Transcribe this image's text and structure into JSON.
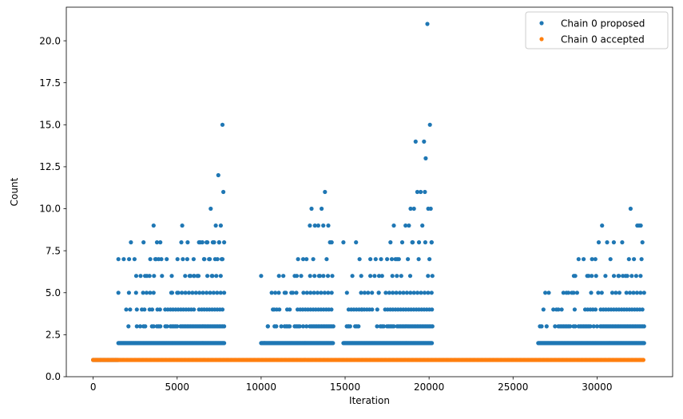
{
  "chart_data": {
    "type": "scatter",
    "xlabel": "Iteration",
    "ylabel": "Count",
    "xlim": [
      -1600,
      34500
    ],
    "ylim": [
      0,
      22
    ],
    "xticks": [
      0,
      5000,
      10000,
      15000,
      20000,
      25000,
      30000
    ],
    "xtick_labels": [
      "0",
      "5000",
      "10000",
      "15000",
      "20000",
      "25000",
      "30000"
    ],
    "yticks": [
      0,
      2.5,
      5,
      7.5,
      10,
      12.5,
      15,
      17.5,
      20
    ],
    "ytick_labels": [
      "0.0",
      "2.5",
      "5.0",
      "7.5",
      "10.0",
      "12.5",
      "15.0",
      "17.5",
      "20.0"
    ],
    "grid": false,
    "legend_position": "top-right",
    "series": [
      {
        "name": "Chain 0 proposed",
        "color": "#1f77b4",
        "note_bands": [
          {
            "x_range": [
              0,
              1500
            ],
            "values": [
              1
            ]
          },
          {
            "x_range": [
              1500,
              7800
            ],
            "values": [
              2,
              3,
              4,
              5,
              6,
              7,
              8
            ]
          },
          {
            "x_range": [
              10000,
              14300
            ],
            "values": [
              2,
              3,
              4,
              5,
              6
            ]
          },
          {
            "x_range": [
              14900,
              20200
            ],
            "values": [
              2,
              3,
              4,
              5,
              6,
              7,
              8
            ]
          },
          {
            "x_range": [
              26500,
              32800
            ],
            "values": [
              2,
              3,
              4,
              5,
              6
            ]
          }
        ],
        "points": [
          [
            3600,
            9
          ],
          [
            3800,
            8
          ],
          [
            4000,
            8
          ],
          [
            3200,
            6
          ],
          [
            3400,
            7
          ],
          [
            3700,
            7
          ],
          [
            3900,
            7
          ],
          [
            4100,
            6
          ],
          [
            2200,
            4
          ],
          [
            2600,
            4
          ],
          [
            2900,
            4
          ],
          [
            4600,
            4
          ],
          [
            4700,
            5
          ],
          [
            5000,
            5
          ],
          [
            5300,
            9
          ],
          [
            5600,
            7
          ],
          [
            5800,
            6
          ],
          [
            6000,
            6
          ],
          [
            6200,
            6
          ],
          [
            6300,
            8
          ],
          [
            6500,
            8
          ],
          [
            6600,
            7
          ],
          [
            6800,
            8
          ],
          [
            7000,
            10
          ],
          [
            7200,
            8
          ],
          [
            7300,
            9
          ],
          [
            7450,
            12
          ],
          [
            7500,
            8
          ],
          [
            7600,
            9
          ],
          [
            7650,
            7
          ],
          [
            7700,
            15
          ],
          [
            7750,
            11
          ],
          [
            7800,
            8
          ],
          [
            7400,
            7
          ],
          [
            6900,
            7
          ],
          [
            7100,
            6
          ],
          [
            7700,
            7
          ],
          [
            10200,
            2
          ],
          [
            10400,
            3
          ],
          [
            10700,
            4
          ],
          [
            10900,
            3
          ],
          [
            11400,
            5
          ],
          [
            11800,
            5
          ],
          [
            12000,
            6
          ],
          [
            12200,
            7
          ],
          [
            12500,
            7
          ],
          [
            12700,
            7
          ],
          [
            12900,
            9
          ],
          [
            13000,
            10
          ],
          [
            13200,
            9
          ],
          [
            13400,
            9
          ],
          [
            13600,
            10
          ],
          [
            13700,
            9
          ],
          [
            13800,
            11
          ],
          [
            14000,
            9
          ],
          [
            14100,
            8
          ],
          [
            14200,
            8
          ],
          [
            13900,
            7
          ],
          [
            13500,
            6
          ],
          [
            13100,
            7
          ],
          [
            15200,
            3
          ],
          [
            16000,
            4
          ],
          [
            16300,
            4
          ],
          [
            16500,
            6
          ],
          [
            16600,
            5
          ],
          [
            17000,
            5
          ],
          [
            17200,
            6
          ],
          [
            17500,
            7
          ],
          [
            17700,
            8
          ],
          [
            17900,
            9
          ],
          [
            18200,
            7
          ],
          [
            18400,
            8
          ],
          [
            18600,
            9
          ],
          [
            18800,
            9
          ],
          [
            18900,
            10
          ],
          [
            19000,
            8
          ],
          [
            19100,
            10
          ],
          [
            19200,
            14
          ],
          [
            19300,
            11
          ],
          [
            19400,
            8
          ],
          [
            19500,
            11
          ],
          [
            19600,
            9
          ],
          [
            19700,
            14
          ],
          [
            19750,
            11
          ],
          [
            19800,
            13
          ],
          [
            19900,
            21
          ],
          [
            19950,
            10
          ],
          [
            20050,
            15
          ],
          [
            20100,
            10
          ],
          [
            20150,
            8
          ],
          [
            18000,
            7
          ],
          [
            26600,
            3
          ],
          [
            27000,
            3
          ],
          [
            27400,
            4
          ],
          [
            27700,
            4
          ],
          [
            28000,
            5
          ],
          [
            28300,
            5
          ],
          [
            28500,
            5
          ],
          [
            28700,
            6
          ],
          [
            28900,
            7
          ],
          [
            29200,
            7
          ],
          [
            29500,
            6
          ],
          [
            29700,
            7
          ],
          [
            29900,
            7
          ],
          [
            30100,
            8
          ],
          [
            30300,
            9
          ],
          [
            30500,
            6
          ],
          [
            30600,
            8
          ],
          [
            30800,
            7
          ],
          [
            31000,
            8
          ],
          [
            31300,
            6
          ],
          [
            31500,
            8
          ],
          [
            31700,
            6
          ],
          [
            31900,
            7
          ],
          [
            32000,
            10
          ],
          [
            32200,
            7
          ],
          [
            32400,
            9
          ],
          [
            32500,
            9
          ],
          [
            32600,
            9
          ],
          [
            32700,
            8
          ],
          [
            32650,
            7
          ]
        ]
      },
      {
        "name": "Chain 0 accepted",
        "color": "#ff7f0e",
        "note_bands": [
          {
            "x_range": [
              0,
              32800
            ],
            "values": [
              1
            ]
          }
        ]
      }
    ]
  }
}
